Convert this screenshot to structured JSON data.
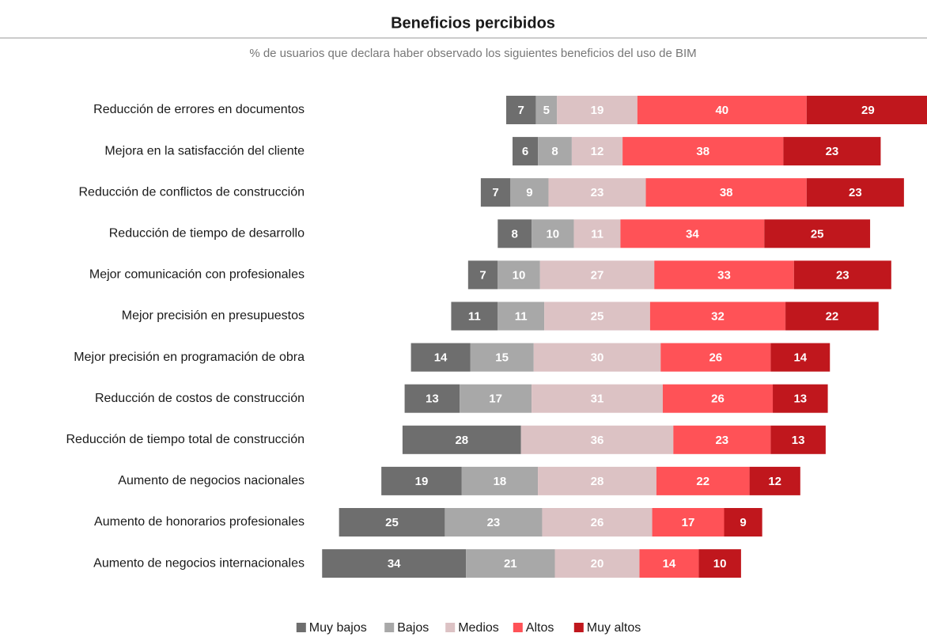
{
  "chart_data": {
    "type": "diverging-bar",
    "title": "Beneficios percibidos",
    "subtitle": "% de usuarios que declara haber observado los siguientes beneficios del uso de BIM",
    "categories": [
      "Reducción de errores en documentos",
      "Mejora en la satisfacción del cliente",
      "Reducción de conflictos de construcción",
      "Reducción de tiempo de desarrollo",
      "Mejor comunicación con profesionales",
      "Mejor precisión en presupuestos",
      "Mejor precisión en programación de obra",
      "Reducción de costos de construcción",
      "Reducción de tiempo total de construcción",
      "Aumento de negocios nacionales",
      "Aumento de honorarios profesionales",
      "Aumento de negocios internacionales"
    ],
    "series": [
      {
        "name": "Muy bajos",
        "color": "#6e6e6e",
        "values": [
          7,
          6,
          7,
          8,
          7,
          11,
          14,
          13,
          28,
          19,
          25,
          34
        ]
      },
      {
        "name": "Bajos",
        "color": "#a8a8a8",
        "values": [
          5,
          8,
          9,
          10,
          10,
          11,
          15,
          17,
          null,
          18,
          23,
          21
        ]
      },
      {
        "name": "Medios",
        "color": "#dcc2c4",
        "values": [
          19,
          12,
          23,
          11,
          27,
          25,
          30,
          31,
          36,
          28,
          26,
          20
        ]
      },
      {
        "name": "Altos",
        "color": "#ff5257",
        "values": [
          40,
          38,
          38,
          34,
          33,
          32,
          26,
          26,
          23,
          22,
          17,
          14
        ]
      },
      {
        "name": "Muy altos",
        "color": "#c0171d",
        "values": [
          29,
          23,
          23,
          25,
          23,
          22,
          14,
          13,
          13,
          12,
          9,
          10
        ]
      }
    ],
    "legend": "bottom"
  }
}
